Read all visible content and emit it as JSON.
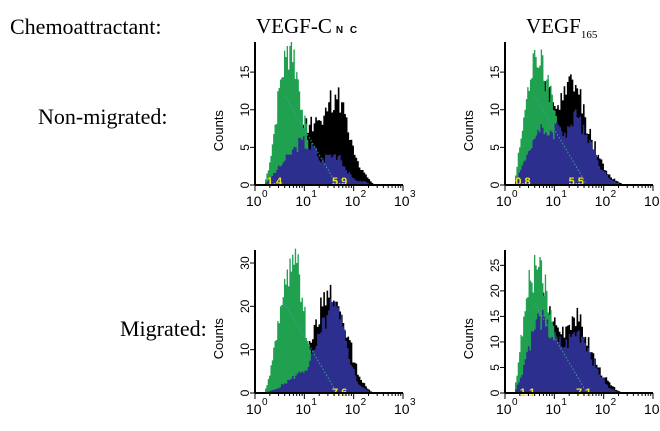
{
  "labels": {
    "chemoattractant": "Chemoattractant:",
    "row1": "Non-migrated:",
    "row2": "Migrated:",
    "col1_main": "VEGF-C",
    "col1_sub": "N C",
    "col2_main": "VEGF",
    "col2_sub": "165"
  },
  "colors": {
    "green": "#1fa150",
    "blue": "#2d2f8f",
    "black": "#000000",
    "label": "#f3e51c",
    "dots": "#3aa58c"
  },
  "chart_data": [
    {
      "type": "area",
      "panel": "non-migrated VEGF-C NC",
      "ylabel": "Counts",
      "xscale": "log",
      "xlim": [
        1,
        1000
      ],
      "ylim": [
        0,
        19
      ],
      "xticks": [
        "10",
        "10",
        "10",
        "10"
      ],
      "xtick_exps": [
        "0",
        "1",
        "2",
        "3"
      ],
      "yticks": [
        "0",
        "5",
        "10",
        "15"
      ],
      "green_y": [
        0,
        3,
        8,
        14,
        17,
        19,
        15,
        10,
        6,
        3,
        1.5,
        1,
        0.5,
        0
      ],
      "front_y": [
        0,
        1,
        2,
        3,
        4,
        5,
        6,
        5,
        5,
        3,
        4,
        4,
        4,
        2,
        1,
        0.5,
        0.5,
        0
      ],
      "back_y": [
        0,
        1,
        2,
        3,
        5,
        7,
        8,
        8,
        9,
        8,
        11,
        12,
        11,
        7,
        4,
        2,
        1,
        0
      ],
      "annotations": [
        "1.4",
        "5.9"
      ]
    },
    {
      "type": "area",
      "panel": "non-migrated VEGF165",
      "ylabel": "Counts",
      "xscale": "log",
      "xlim": [
        1,
        1000
      ],
      "ylim": [
        0,
        19
      ],
      "xticks": [
        "10",
        "10",
        "10",
        "10"
      ],
      "xtick_exps": [
        "0",
        "1",
        "2",
        "3"
      ],
      "yticks": [
        "0",
        "5",
        "10",
        "15"
      ],
      "green_y": [
        0,
        5,
        10,
        14,
        17,
        18,
        14,
        12,
        8,
        6,
        3,
        1.5,
        0.5,
        0
      ],
      "front_y": [
        0,
        2,
        4,
        6,
        7,
        7,
        7,
        8,
        7,
        8,
        9,
        8,
        6,
        4,
        2,
        1,
        0.5,
        0
      ],
      "back_y": [
        0,
        3,
        6,
        8,
        11,
        12,
        11,
        10,
        12,
        14,
        12,
        9,
        6,
        4,
        2,
        1,
        0.5,
        0
      ],
      "annotations": [
        "0.8",
        "5.5"
      ]
    },
    {
      "type": "area",
      "panel": "migrated VEGF-C NC",
      "ylabel": "Counts",
      "xscale": "log",
      "xlim": [
        1,
        1000
      ],
      "ylim": [
        0,
        33
      ],
      "xticks": [
        "10",
        "10",
        "10",
        "10"
      ],
      "xtick_exps": [
        "0",
        "1",
        "2",
        "3"
      ],
      "yticks": [
        "0",
        "10",
        "20",
        "30"
      ],
      "green_y": [
        0,
        4,
        12,
        20,
        25,
        28,
        30,
        22,
        12,
        5,
        2,
        1,
        0.5,
        0
      ],
      "front_y": [
        0,
        0.5,
        1,
        2,
        3,
        4,
        5,
        6,
        10,
        14,
        18,
        20,
        17,
        12,
        6,
        2,
        1,
        0
      ],
      "back_y": [
        0,
        0.5,
        1,
        2,
        3,
        5,
        8,
        12,
        17,
        20,
        22,
        21,
        18,
        13,
        7,
        3,
        1,
        0
      ],
      "annotations": [
        "7.6"
      ]
    },
    {
      "type": "area",
      "panel": "migrated VEGF165",
      "ylabel": "Counts",
      "xscale": "log",
      "xlim": [
        1,
        1000
      ],
      "ylim": [
        0,
        28
      ],
      "xticks": [
        "10",
        "10",
        "10",
        "10"
      ],
      "xtick_exps": [
        "0",
        "1",
        "2",
        "3"
      ],
      "yticks": [
        "0",
        "5",
        "10",
        "15",
        "20",
        "25"
      ],
      "green_y": [
        0,
        8,
        16,
        22,
        25,
        26,
        20,
        14,
        9,
        5,
        3,
        1.5,
        0.5,
        0
      ],
      "front_y": [
        0,
        3,
        8,
        12,
        15,
        13,
        11,
        10,
        9,
        11,
        12,
        11,
        8,
        5,
        3,
        1,
        0.5,
        0
      ],
      "back_y": [
        0,
        5,
        10,
        14,
        18,
        17,
        14,
        12,
        13,
        15,
        14,
        11,
        8,
        5,
        3,
        1.5,
        0.5,
        0
      ],
      "annotations": [
        "1.1",
        "7.1"
      ]
    }
  ]
}
